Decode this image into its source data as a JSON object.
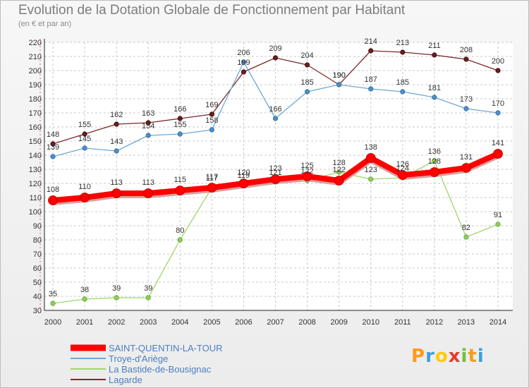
{
  "chart_data": {
    "type": "line",
    "title": "Evolution de la Dotation Globale de Fonctionnement par Habitant",
    "subtitle": "(en € et par an)",
    "x": [
      "2000",
      "2001",
      "2002",
      "2003",
      "2004",
      "2005",
      "2006",
      "2007",
      "2008",
      "2009",
      "2010",
      "2011",
      "2012",
      "2013",
      "2014"
    ],
    "ylim": [
      30,
      220
    ],
    "yticks": [
      30,
      40,
      50,
      60,
      70,
      80,
      90,
      100,
      110,
      120,
      130,
      140,
      150,
      160,
      170,
      180,
      190,
      200,
      210,
      220
    ],
    "grid": true,
    "legend_position": "bottom-left",
    "series": [
      {
        "name": "SAINT-QUENTIN-LA-TOUR",
        "color": "#ff0000",
        "values": [
          108,
          110,
          113,
          113,
          115,
          117,
          120,
          123,
          125,
          122,
          138,
          126,
          128,
          131,
          141
        ]
      },
      {
        "name": "Troye-d'Ariège",
        "color": "#6fa8d6",
        "values": [
          139,
          145,
          143,
          154,
          155,
          158,
          206,
          166,
          185,
          190,
          187,
          185,
          181,
          173,
          170
        ]
      },
      {
        "name": "La Bastide-de-Bousignac",
        "color": "#9ed86a",
        "values": [
          35,
          38,
          39,
          39,
          80,
          117,
          119,
          121,
          122,
          128,
          123,
          124,
          136,
          82,
          91
        ]
      },
      {
        "name": "Lagarde",
        "color": "#7a2a2a",
        "values": [
          148,
          155,
          162,
          163,
          166,
          169,
          199,
          209,
          204,
          190,
          214,
          213,
          211,
          208,
          200
        ]
      }
    ]
  },
  "logo": {
    "p": "P",
    "r": "r",
    "o": "o",
    "x": "x",
    "i1": "i",
    "t": "t",
    "i2": "i"
  }
}
